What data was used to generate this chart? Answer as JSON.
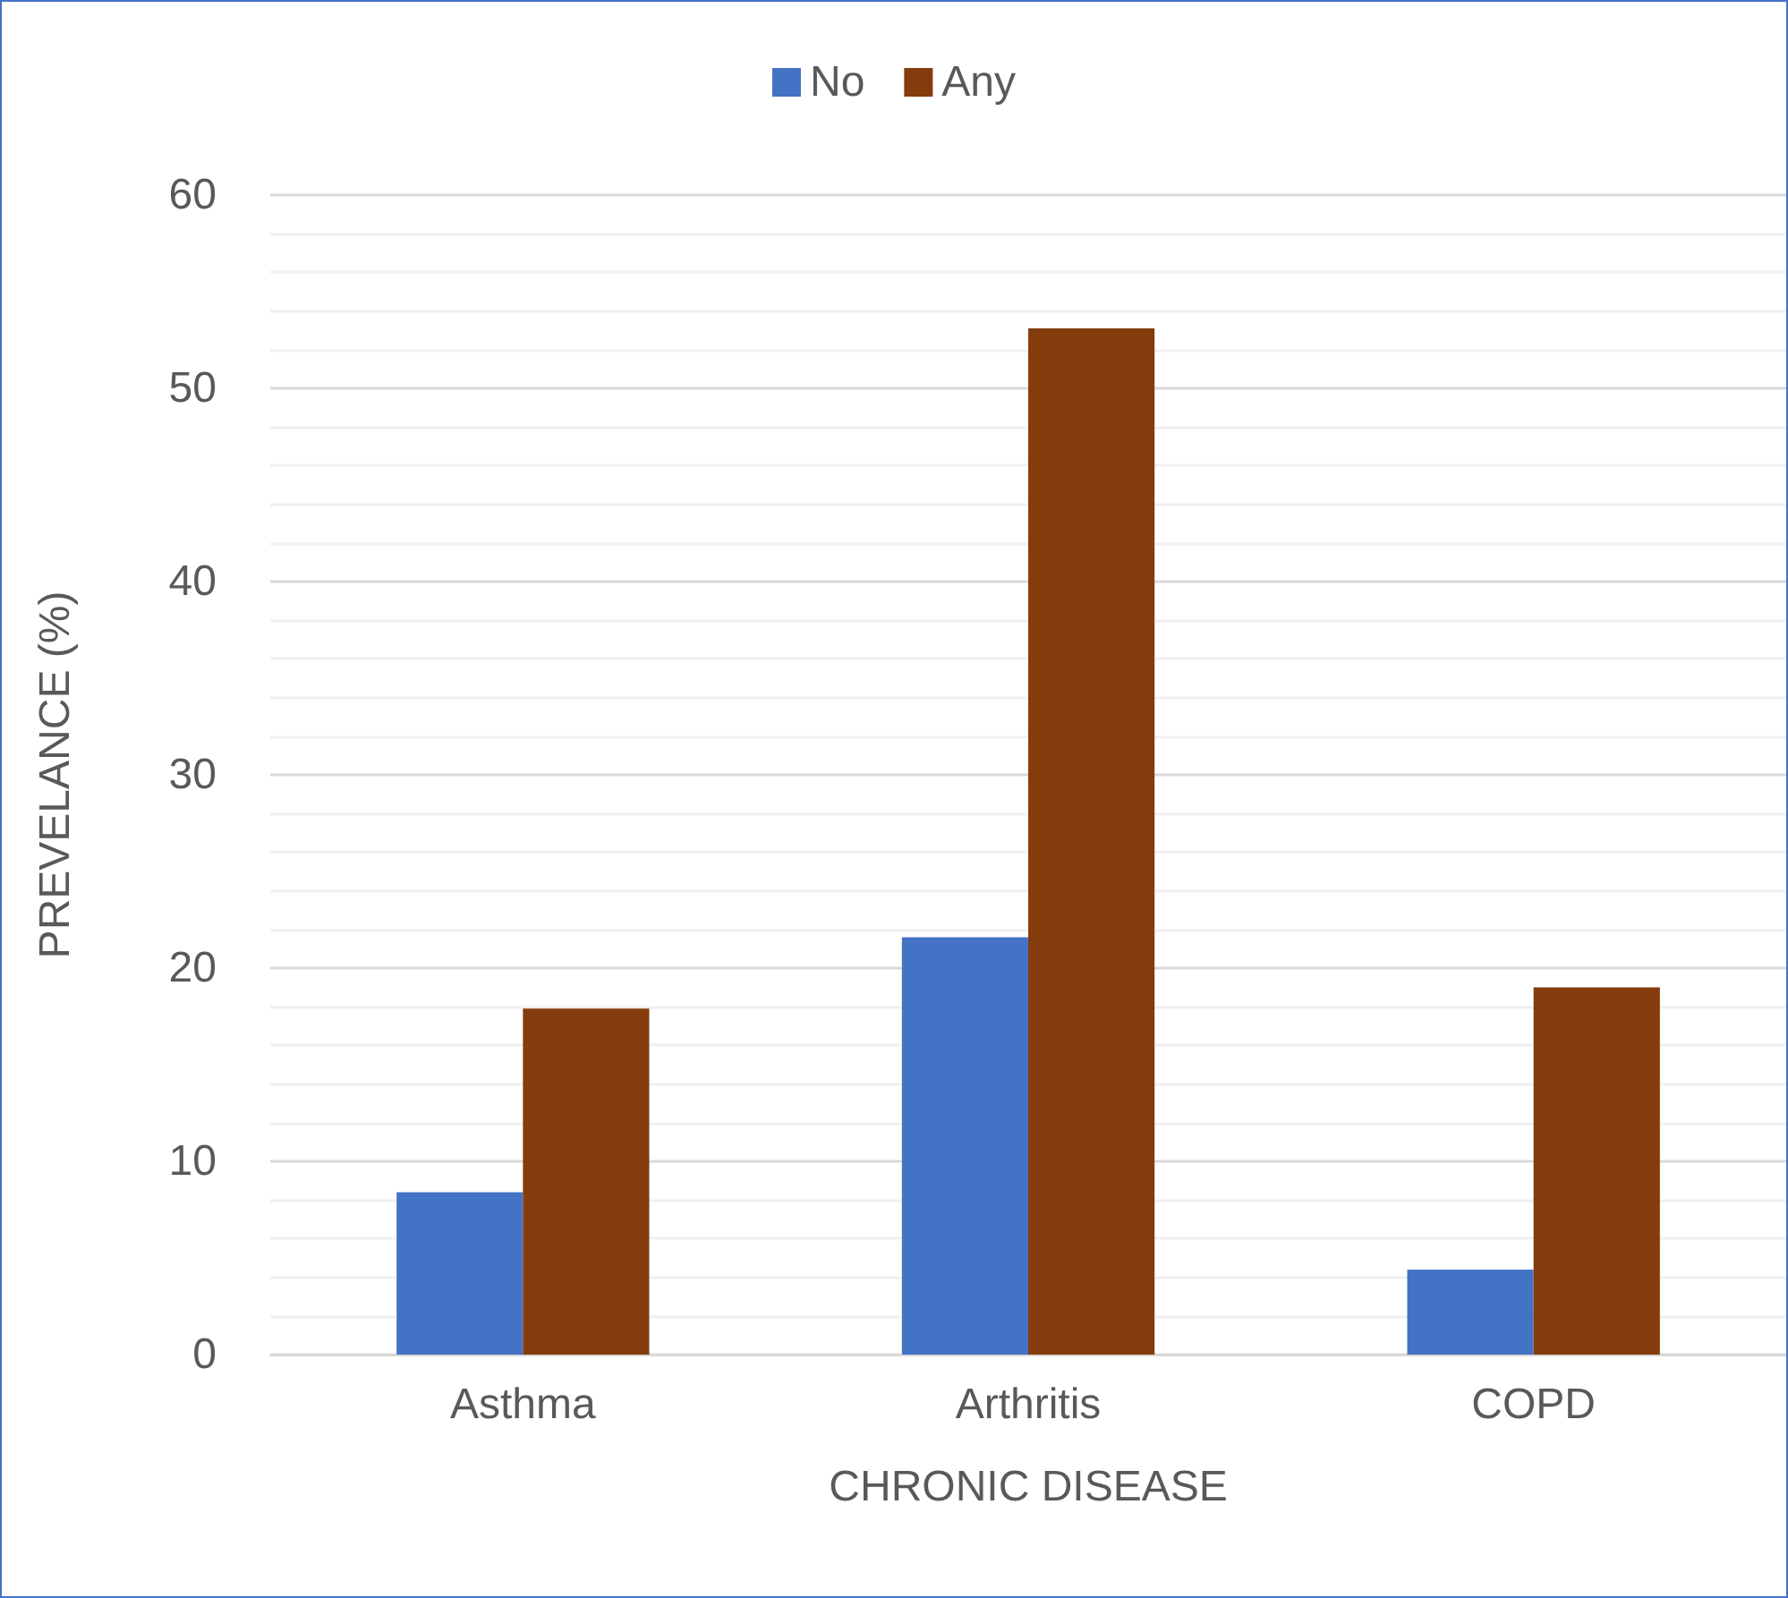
{
  "chart_data": {
    "type": "bar",
    "xlabel": "CHRONIC DISEASE",
    "ylabel": "PREVELANCE (%)",
    "categories": [
      "Asthma",
      "Arthritis",
      "COPD"
    ],
    "series": [
      {
        "name": "No",
        "color": "#4472c4",
        "values": [
          8.4,
          21.6,
          4.4
        ]
      },
      {
        "name": "Any",
        "color": "#843c0c",
        "values": [
          17.9,
          53.1,
          19.0
        ]
      }
    ],
    "ylim": [
      0,
      60
    ],
    "yticks": [
      0,
      10,
      20,
      30,
      40,
      50,
      60
    ],
    "grid": "y",
    "legend": "top"
  }
}
